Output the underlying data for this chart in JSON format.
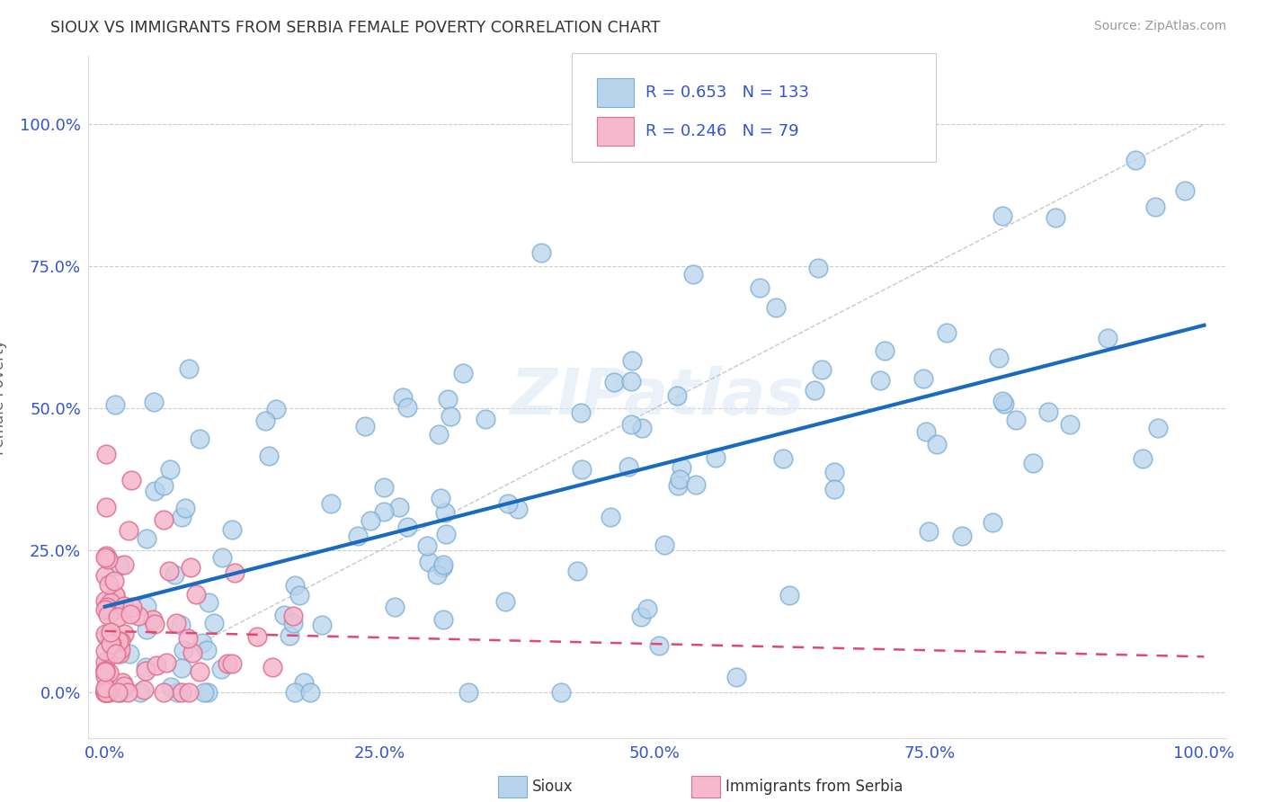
{
  "title": "SIOUX VS IMMIGRANTS FROM SERBIA FEMALE POVERTY CORRELATION CHART",
  "source_text": "Source: ZipAtlas.com",
  "ylabel": "Female Poverty",
  "sioux_R": 0.653,
  "sioux_N": 133,
  "serbia_R": 0.246,
  "serbia_N": 79,
  "sioux_color": "#b8d4ed",
  "sioux_edge_color": "#7aadd4",
  "serbia_color": "#f5b8cc",
  "serbia_edge_color": "#e07090",
  "sioux_line_color": "#1a6bbf",
  "serbia_line_color": "#e04870",
  "grid_color": "#cccccc",
  "watermark": "ZIPatlas",
  "title_color": "#333333",
  "legend_color": "#3355cc",
  "axis_color": "#3355cc",
  "background": "#ffffff"
}
